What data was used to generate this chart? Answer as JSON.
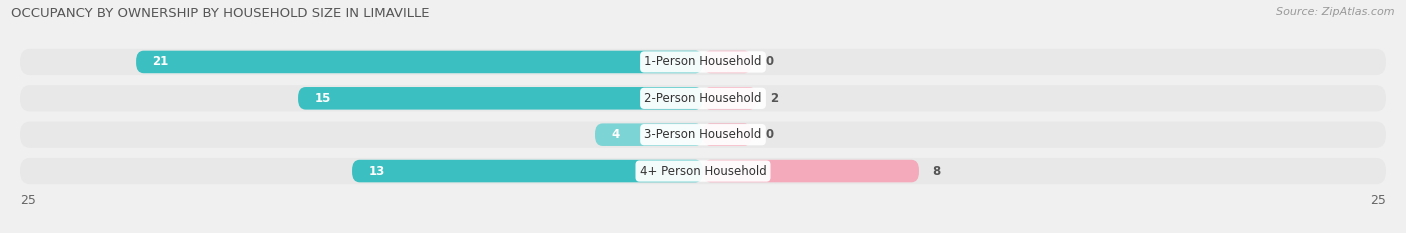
{
  "title": "OCCUPANCY BY OWNERSHIP BY HOUSEHOLD SIZE IN LIMAVILLE",
  "source": "Source: ZipAtlas.com",
  "categories": [
    "1-Person Household",
    "2-Person Household",
    "3-Person Household",
    "4+ Person Household"
  ],
  "owner_values": [
    21,
    15,
    4,
    13
  ],
  "renter_values": [
    0,
    2,
    0,
    8
  ],
  "owner_color_strong": "#3BBFC0",
  "owner_color_light": "#7DD4D4",
  "renter_color_strong": "#F07898",
  "renter_color_light": "#F4AABB",
  "bg_color": "#f0f0f0",
  "bar_bg_color": "#e2e2e2",
  "row_bg_color": "#e8e8e8",
  "xlim": 25,
  "title_fontsize": 9.5,
  "source_fontsize": 8,
  "label_fontsize": 8.5,
  "axis_fontsize": 9,
  "category_fontsize": 8.5,
  "strong_threshold": 10
}
